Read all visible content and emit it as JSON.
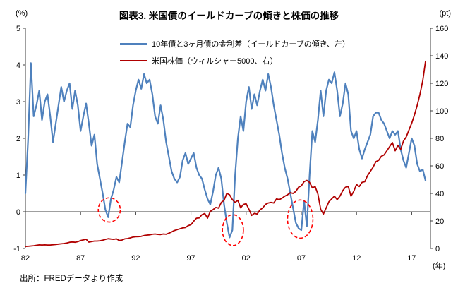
{
  "title": "図表3. 米国債のイールドカーブの傾きと株価の推移",
  "source": "出所：FREDデータより作成",
  "axes": {
    "left_unit": "(%)",
    "right_unit": "(pt)",
    "x_unit": "(年)",
    "left_ticks": [
      5,
      4,
      3,
      2,
      1,
      0,
      -1
    ],
    "right_ticks": [
      160,
      140,
      120,
      100,
      80,
      60,
      40,
      20,
      0
    ],
    "x_tick_labels": [
      "82",
      "87",
      "92",
      "97",
      "02",
      "07",
      "12",
      "17"
    ]
  },
  "legend": {
    "items": [
      {
        "label": "10年債と3ヶ月債の金利差（イールドカーブの傾き、左）",
        "color": "#4F81BD",
        "thickness": 3
      },
      {
        "label": "米国株価（ウィルシャー5000、右）",
        "color": "#B00000",
        "thickness": 2
      }
    ]
  },
  "chart_data": {
    "type": "line",
    "title": "図表3. 米国債のイールドカーブの傾きと株価の推移",
    "x_range": [
      1982,
      2018.7
    ],
    "x_tick_years": [
      1982,
      1987,
      1992,
      1997,
      2002,
      2007,
      2012,
      2017
    ],
    "left_ylim": [
      -1,
      5
    ],
    "right_ylim": [
      0,
      160
    ],
    "grid": false,
    "legend_position": "top-center",
    "series": [
      {
        "name": "10年債と3ヶ月債の金利差（イールドカーブの傾き、左）",
        "axis": "left",
        "color": "#4F81BD",
        "width": 2.2,
        "x_start": 1982,
        "x_step": 0.25,
        "values": [
          0.5,
          2.0,
          4.05,
          2.6,
          2.9,
          3.3,
          2.5,
          3.0,
          3.2,
          2.6,
          1.9,
          2.4,
          2.9,
          3.4,
          3.0,
          3.3,
          3.5,
          2.8,
          3.3,
          2.9,
          2.2,
          2.6,
          2.95,
          2.4,
          1.8,
          2.1,
          1.3,
          0.9,
          0.5,
          0.05,
          -0.15,
          0.35,
          0.6,
          0.95,
          0.8,
          1.35,
          1.9,
          2.4,
          2.3,
          2.9,
          3.3,
          3.6,
          3.35,
          3.75,
          3.5,
          3.6,
          3.2,
          2.6,
          2.4,
          2.9,
          2.5,
          1.9,
          1.5,
          1.1,
          0.9,
          0.8,
          0.95,
          1.4,
          1.6,
          1.3,
          1.45,
          1.6,
          1.2,
          1.0,
          0.9,
          0.6,
          0.35,
          0.2,
          0.55,
          1.0,
          1.2,
          0.9,
          0.2,
          -0.3,
          -0.7,
          -0.5,
          1.0,
          2.0,
          2.6,
          2.2,
          3.0,
          3.4,
          2.8,
          3.2,
          2.9,
          3.3,
          3.6,
          3.3,
          3.75,
          3.4,
          2.9,
          2.5,
          2.1,
          1.6,
          1.2,
          0.9,
          0.5,
          0.1,
          -0.3,
          -0.45,
          -0.5,
          0.3,
          -0.4,
          1.0,
          2.2,
          1.9,
          2.5,
          3.3,
          2.6,
          3.3,
          3.6,
          3.5,
          3.8,
          3.3,
          2.6,
          2.95,
          3.5,
          3.2,
          2.2,
          2.0,
          2.2,
          1.7,
          1.45,
          1.7,
          1.9,
          2.1,
          2.6,
          2.7,
          2.7,
          2.5,
          2.4,
          2.2,
          2.0,
          2.2,
          2.1,
          2.2,
          1.7,
          1.4,
          1.2,
          1.6,
          2.0,
          1.8,
          1.3,
          1.1,
          1.15,
          0.85
        ]
      },
      {
        "name": "米国株価（ウィルシャー5000、右）",
        "axis": "right",
        "color": "#B00000",
        "width": 1.8,
        "x_start": 1982,
        "x_step": 0.25,
        "values": [
          1.5,
          1.6,
          1.8,
          2.0,
          2.3,
          2.6,
          2.5,
          2.6,
          2.5,
          2.5,
          2.7,
          2.9,
          3.2,
          3.4,
          3.6,
          4.0,
          4.5,
          4.7,
          4.5,
          4.9,
          5.8,
          6.2,
          6.7,
          4.6,
          5.0,
          5.4,
          5.4,
          5.6,
          6.0,
          6.6,
          7.1,
          6.8,
          6.6,
          7.0,
          5.8,
          6.1,
          7.0,
          7.2,
          7.7,
          8.3,
          8.5,
          8.6,
          8.8,
          9.4,
          9.7,
          9.9,
          10.3,
          10.5,
          10.2,
          10.1,
          10.5,
          10.3,
          11.1,
          12.0,
          13.0,
          13.7,
          14.3,
          15.0,
          15.2,
          16.6,
          17.3,
          19.8,
          22.0,
          22.2,
          24.5,
          25.4,
          22.0,
          27.0,
          28.2,
          29.8,
          29.3,
          33.5,
          35.0,
          40.0,
          39.0,
          35.5,
          33.5,
          35.0,
          29.5,
          32.0,
          32.5,
          28.5,
          24.0,
          25.5,
          25.0,
          28.0,
          29.5,
          32.0,
          33.0,
          33.5,
          33.0,
          36.0,
          35.5,
          36.5,
          38.0,
          39.0,
          40.5,
          40.0,
          41.5,
          44.5,
          45.5,
          48.5,
          49.5,
          48.0,
          44.0,
          45.0,
          39.5,
          28.5,
          25.0,
          29.5,
          34.0,
          36.0,
          38.0,
          35.5,
          38.0,
          42.0,
          44.5,
          45.0,
          38.0,
          41.5,
          46.5,
          45.0,
          48.0,
          48.5,
          53.0,
          56.0,
          59.0,
          63.0,
          64.0,
          67.0,
          68.0,
          71.0,
          74.0,
          77.0,
          71.0,
          75.0,
          72.0,
          78.0,
          81.0,
          86.0,
          91.0,
          97.0,
          104.0,
          112.0,
          122.0,
          136.0
        ]
      }
    ],
    "annotations": {
      "color": "#FF0000",
      "ellipses": [
        {
          "x": 1989.6,
          "y": 0.05,
          "rx_years": 1.0,
          "ry_units": 0.33
        },
        {
          "x": 2000.8,
          "y": -0.5,
          "rx_years": 0.95,
          "ry_units": 0.42
        },
        {
          "x": 2006.9,
          "y": -0.2,
          "rx_years": 1.15,
          "ry_units": 0.52
        }
      ]
    }
  }
}
